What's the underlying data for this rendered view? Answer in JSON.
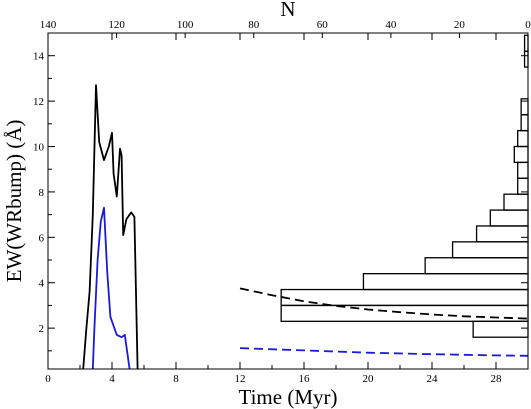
{
  "chart_data": {
    "type": "line",
    "xlabel": "Time (Myr)",
    "ylabel": "EW(WRbump) (Å)",
    "top_xlabel": "N",
    "xlim": [
      0,
      30
    ],
    "ylim": [
      0.2,
      15
    ],
    "x_ticks": [
      0,
      4,
      8,
      12,
      16,
      20,
      24,
      28
    ],
    "y_ticks": [
      2,
      4,
      6,
      8,
      10,
      12,
      14
    ],
    "top_ticks": [
      140,
      120,
      100,
      80,
      60,
      40,
      20,
      0
    ],
    "top_axis_mapping": {
      "N_at_right_edge": 0,
      "N_per_time_unit": 4.667
    },
    "series": [
      {
        "color": "#000000",
        "style": "solid",
        "points": [
          [
            2.2,
            0.2
          ],
          [
            2.4,
            2.0
          ],
          [
            2.6,
            3.6
          ],
          [
            2.8,
            7.0
          ],
          [
            3.0,
            12.7
          ],
          [
            3.2,
            10.2
          ],
          [
            3.5,
            9.4
          ],
          [
            3.8,
            10.0
          ],
          [
            4.0,
            10.6
          ],
          [
            4.1,
            8.8
          ],
          [
            4.3,
            7.8
          ],
          [
            4.5,
            9.9
          ],
          [
            4.6,
            9.6
          ],
          [
            4.7,
            6.1
          ],
          [
            4.9,
            6.8
          ],
          [
            5.2,
            7.1
          ],
          [
            5.4,
            6.9
          ],
          [
            5.6,
            0.2
          ]
        ]
      },
      {
        "color": "#1a1adc",
        "style": "solid",
        "points": [
          [
            2.8,
            0.2
          ],
          [
            2.9,
            2.0
          ],
          [
            3.1,
            5.0
          ],
          [
            3.3,
            6.7
          ],
          [
            3.5,
            7.3
          ],
          [
            3.7,
            4.5
          ],
          [
            3.9,
            2.5
          ],
          [
            4.1,
            2.1
          ],
          [
            4.3,
            1.7
          ],
          [
            4.6,
            1.6
          ],
          [
            4.8,
            1.7
          ],
          [
            5.1,
            0.2
          ]
        ]
      },
      {
        "color": "#000000",
        "style": "dashed",
        "points": [
          [
            12.0,
            3.75
          ],
          [
            14.0,
            3.45
          ],
          [
            16.0,
            3.18
          ],
          [
            18.0,
            2.98
          ],
          [
            20.0,
            2.82
          ],
          [
            22.0,
            2.7
          ],
          [
            24.0,
            2.6
          ],
          [
            26.0,
            2.52
          ],
          [
            28.0,
            2.47
          ],
          [
            30.0,
            2.42
          ]
        ]
      },
      {
        "color": "#1a1adc",
        "style": "dashed",
        "points": [
          [
            12.0,
            1.12
          ],
          [
            16.0,
            1.02
          ],
          [
            20.0,
            0.92
          ],
          [
            24.0,
            0.85
          ],
          [
            28.0,
            0.8
          ],
          [
            30.0,
            0.78
          ]
        ]
      }
    ],
    "histogram": {
      "orientation": "horizontal",
      "bin_width": 0.7,
      "bin_starts": [
        0.2,
        0.9,
        1.6,
        2.3,
        3.0,
        3.7,
        4.4,
        5.1,
        5.8,
        6.5,
        7.2,
        7.9,
        8.6,
        9.3,
        10.0,
        10.7,
        11.4,
        12.1,
        12.8,
        13.5,
        14.2
      ],
      "counts": [
        0,
        0,
        16,
        72,
        72,
        48,
        30,
        22,
        15,
        11,
        7,
        3,
        3,
        4,
        3,
        2,
        2,
        0,
        0,
        1,
        1
      ]
    }
  }
}
